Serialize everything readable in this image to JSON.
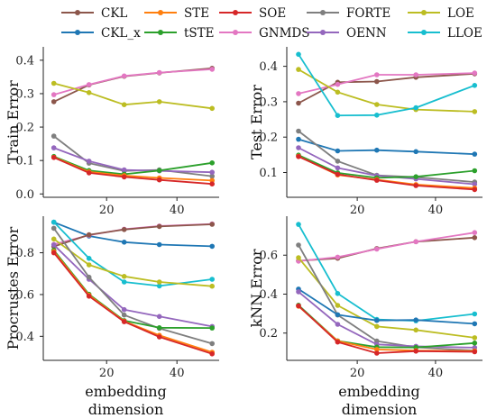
{
  "legend": {
    "ncols": 5,
    "entries": [
      {
        "key": "CKL",
        "label": "CKL",
        "color": "#8c564b"
      },
      {
        "key": "CKL_x",
        "label": "CKL_x",
        "color": "#1f77b4"
      },
      {
        "key": "STE",
        "label": "STE",
        "color": "#ff7f0e"
      },
      {
        "key": "tSTE",
        "label": "tSTE",
        "color": "#2ca02c"
      },
      {
        "key": "SOE",
        "label": "SOE",
        "color": "#d62728"
      },
      {
        "key": "GNMDS",
        "label": "GNMDS",
        "color": "#e377c2"
      },
      {
        "key": "FORTE",
        "label": "FORTE",
        "color": "#7f7f7f"
      },
      {
        "key": "OENN",
        "label": "OENN",
        "color": "#9467bd"
      },
      {
        "key": "LOE",
        "label": "LOE",
        "color": "#bcbd22"
      },
      {
        "key": "LLOE",
        "label": "LLOE",
        "color": "#17becf"
      }
    ]
  },
  "chart_data": [
    {
      "type": "line",
      "title": "",
      "ylabel": "Train Error",
      "xlabel": "",
      "x": [
        5,
        15,
        25,
        35,
        50
      ],
      "xlim": [
        2,
        52
      ],
      "ylim": [
        -0.01,
        0.44
      ],
      "xticks": [
        20,
        40
      ],
      "yticks": [
        0.0,
        0.1,
        0.2,
        0.3,
        0.4
      ],
      "ytick_labels": [
        "0.0",
        "0.1",
        "0.2",
        "0.3",
        "0.4"
      ],
      "series": [
        {
          "key": "CKL",
          "values": [
            0.276,
            0.326,
            0.352,
            0.362,
            0.376
          ]
        },
        {
          "key": "GNMDS",
          "values": [
            0.297,
            0.327,
            0.353,
            0.363,
            0.373
          ]
        },
        {
          "key": "LOE",
          "values": [
            0.331,
            0.303,
            0.267,
            0.276,
            0.256
          ]
        },
        {
          "key": "FORTE",
          "values": [
            0.173,
            0.092,
            0.069,
            0.072,
            0.053
          ]
        },
        {
          "key": "OENN",
          "values": [
            0.138,
            0.098,
            0.072,
            0.069,
            0.065
          ]
        },
        {
          "key": "tSTE",
          "values": [
            0.112,
            0.07,
            0.059,
            0.07,
            0.093
          ]
        },
        {
          "key": "STE",
          "values": [
            0.11,
            0.066,
            0.055,
            0.048,
            0.04
          ]
        },
        {
          "key": "SOE",
          "values": [
            0.109,
            0.063,
            0.051,
            0.042,
            0.03
          ]
        }
      ]
    },
    {
      "type": "line",
      "title": "",
      "ylabel": "Test Error",
      "xlabel": "",
      "x": [
        5,
        15,
        25,
        35,
        50
      ],
      "xlim": [
        2,
        52
      ],
      "ylim": [
        0.03,
        0.455
      ],
      "xticks": [
        20,
        40
      ],
      "yticks": [
        0.1,
        0.2,
        0.3,
        0.4
      ],
      "ytick_labels": [
        "0.1",
        "0.2",
        "0.3",
        "0.4"
      ],
      "series": [
        {
          "key": "CKL",
          "values": [
            0.296,
            0.355,
            0.357,
            0.369,
            0.379
          ]
        },
        {
          "key": "GNMDS",
          "values": [
            0.323,
            0.349,
            0.376,
            0.376,
            0.381
          ]
        },
        {
          "key": "LOE",
          "values": [
            0.391,
            0.327,
            0.292,
            0.278,
            0.272
          ]
        },
        {
          "key": "LLOE",
          "values": [
            0.434,
            0.261,
            0.262,
            0.283,
            0.346
          ]
        },
        {
          "key": "CKL_x",
          "values": [
            0.194,
            0.161,
            0.163,
            0.159,
            0.152
          ]
        },
        {
          "key": "FORTE",
          "values": [
            0.217,
            0.132,
            0.092,
            0.087,
            0.073
          ]
        },
        {
          "key": "OENN",
          "values": [
            0.17,
            0.113,
            0.091,
            0.082,
            0.067
          ]
        },
        {
          "key": "tSTE",
          "values": [
            0.149,
            0.099,
            0.085,
            0.088,
            0.105
          ]
        },
        {
          "key": "STE",
          "values": [
            0.146,
            0.093,
            0.08,
            0.066,
            0.056
          ]
        },
        {
          "key": "SOE",
          "values": [
            0.145,
            0.095,
            0.078,
            0.063,
            0.052
          ]
        }
      ]
    },
    {
      "type": "line",
      "title": "",
      "ylabel": "Procrustes Error",
      "xlabel": "embedding\ndimension",
      "x": [
        5,
        15,
        25,
        35,
        50
      ],
      "xlim": [
        2,
        52
      ],
      "ylim": [
        0.285,
        0.975
      ],
      "xticks": [
        20,
        40
      ],
      "yticks": [
        0.4,
        0.6,
        0.8
      ],
      "ytick_labels": [
        "0.4",
        "0.6",
        "0.8"
      ],
      "series": [
        {
          "key": "CKL_x",
          "values": [
            0.946,
            0.88,
            0.851,
            0.839,
            0.831
          ]
        },
        {
          "key": "GNMDS",
          "values": [
            0.84,
            0.884,
            0.913,
            0.928,
            0.938
          ]
        },
        {
          "key": "CKL",
          "values": [
            0.83,
            0.886,
            0.911,
            0.926,
            0.936
          ]
        },
        {
          "key": "LLOE",
          "values": [
            0.947,
            0.773,
            0.66,
            0.641,
            0.673
          ]
        },
        {
          "key": "LOE",
          "values": [
            0.866,
            0.742,
            0.687,
            0.66,
            0.64
          ]
        },
        {
          "key": "OENN",
          "values": [
            0.838,
            0.673,
            0.528,
            0.495,
            0.447
          ]
        },
        {
          "key": "FORTE",
          "values": [
            0.917,
            0.683,
            0.502,
            0.438,
            0.365
          ]
        },
        {
          "key": "tSTE",
          "values": [
            0.812,
            0.601,
            0.475,
            0.441,
            0.44
          ]
        },
        {
          "key": "STE",
          "values": [
            0.806,
            0.597,
            0.472,
            0.405,
            0.324
          ]
        },
        {
          "key": "SOE",
          "values": [
            0.8,
            0.592,
            0.47,
            0.397,
            0.316
          ]
        }
      ]
    },
    {
      "type": "line",
      "title": "",
      "ylabel": "kNN Error",
      "xlabel": "embedding\ndimension",
      "x": [
        5,
        15,
        25,
        35,
        50
      ],
      "xlim": [
        2,
        52
      ],
      "ylim": [
        0.06,
        0.8
      ],
      "xticks": [
        20,
        40
      ],
      "yticks": [
        0.2,
        0.4,
        0.6
      ],
      "ytick_labels": [
        "0.2",
        "0.4",
        "0.6"
      ],
      "series": [
        {
          "key": "CKL",
          "values": [
            0.571,
            0.584,
            0.634,
            0.669,
            0.69
          ]
        },
        {
          "key": "GNMDS",
          "values": [
            0.569,
            0.59,
            0.631,
            0.669,
            0.716
          ]
        },
        {
          "key": "LOE",
          "values": [
            0.587,
            0.342,
            0.234,
            0.216,
            0.176
          ]
        },
        {
          "key": "LLOE",
          "values": [
            0.758,
            0.403,
            0.27,
            0.263,
            0.298
          ]
        },
        {
          "key": "FORTE",
          "values": [
            0.652,
            0.293,
            0.159,
            0.127,
            0.11
          ]
        },
        {
          "key": "CKL_x",
          "values": [
            0.426,
            0.294,
            0.265,
            0.267,
            0.248
          ]
        },
        {
          "key": "OENN",
          "values": [
            0.412,
            0.245,
            0.142,
            0.132,
            0.125
          ]
        },
        {
          "key": "tSTE",
          "values": [
            0.343,
            0.16,
            0.128,
            0.126,
            0.149
          ]
        },
        {
          "key": "STE",
          "values": [
            0.338,
            0.159,
            0.116,
            0.11,
            0.108
          ]
        },
        {
          "key": "SOE",
          "values": [
            0.34,
            0.154,
            0.097,
            0.107,
            0.104
          ]
        }
      ]
    }
  ]
}
